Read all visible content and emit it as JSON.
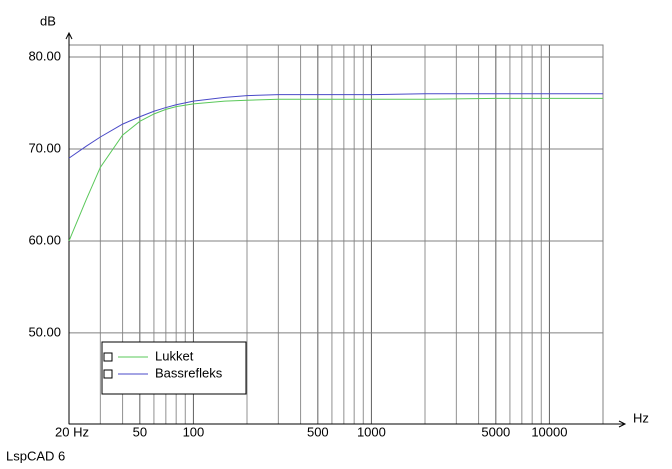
{
  "chart_data": {
    "type": "line",
    "log_x": true,
    "y_label": "dB",
    "x_label": "Hz",
    "footer": "LspCAD 6",
    "xlim": [
      20,
      20000
    ],
    "ylim": [
      40.1,
      81.3
    ],
    "xticks": [
      {
        "value": 20,
        "label": "20 Hz"
      },
      50,
      100,
      500,
      1000,
      5000,
      10000
    ],
    "x_minor_ticks": [
      30,
      40,
      60,
      70,
      80,
      90,
      200,
      300,
      400,
      600,
      700,
      800,
      900,
      2000,
      3000,
      4000,
      6000,
      7000,
      8000,
      9000
    ],
    "yticks": [
      {
        "value": 50,
        "label": "50.00"
      },
      {
        "value": 60,
        "label": "60.00"
      },
      {
        "value": 70,
        "label": "70.00"
      },
      {
        "value": 80,
        "label": "80.00"
      }
    ],
    "grid": true,
    "x": [
      20,
      25,
      30,
      40,
      50,
      60,
      70,
      80,
      100,
      150,
      200,
      300,
      500,
      1000,
      2000,
      5000,
      10000,
      20000
    ],
    "series": [
      {
        "name": "Lukket",
        "color": "#5ac85a",
        "values": [
          60,
          64.5,
          68,
          71.5,
          73,
          73.8,
          74.3,
          74.6,
          74.9,
          75.2,
          75.3,
          75.4,
          75.4,
          75.4,
          75.4,
          75.5,
          75.5,
          75.5
        ]
      },
      {
        "name": "Bassrefleks",
        "color": "#4a4ac8",
        "values": [
          69,
          70.3,
          71.3,
          72.7,
          73.5,
          74.1,
          74.5,
          74.8,
          75.2,
          75.6,
          75.8,
          75.9,
          75.9,
          75.9,
          76,
          76,
          76,
          76
        ]
      }
    ]
  }
}
